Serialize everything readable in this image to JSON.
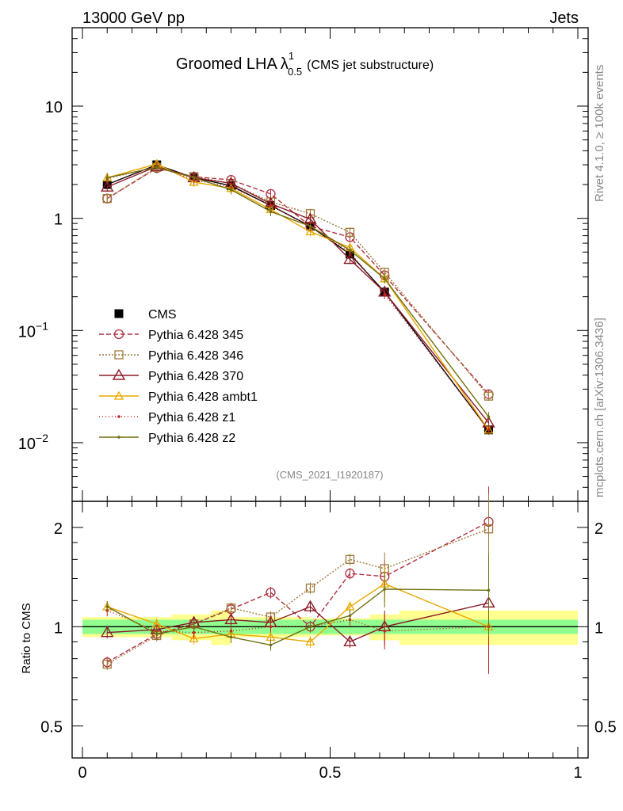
{
  "header": {
    "energy": "13000 GeV pp",
    "category": "Jets"
  },
  "title": {
    "main": "Groomed LHA",
    "lambda": "λ",
    "sup": "1",
    "sub": "0.5",
    "suffix": "(CMS jet substructure)"
  },
  "side_labels": {
    "rivet": "Rivet 4.1.0, ≥ 100k events",
    "mcplots": "mcplots.cern.ch [arXiv:1306.3436]"
  },
  "analysis_id": "(CMS_2021_I1920187)",
  "colors": {
    "cms": "#000000",
    "p345": "#b03040",
    "p346": "#a07838",
    "p370": "#8c1a28",
    "ambt1": "#e8a800",
    "z1": "#c82020",
    "z2": "#707010",
    "band_green": "#90ff90",
    "band_yellow": "#ffff90"
  },
  "chart_data": [
    {
      "type": "line",
      "name": "main",
      "yscale": "log",
      "xlim": [
        0,
        1
      ],
      "ylim": [
        0.003,
        50
      ],
      "yticks": [
        {
          "label": "10",
          "value": 10
        },
        {
          "label": "1",
          "value": 1
        },
        {
          "label": "10",
          "sup": "−1",
          "value": 0.1
        },
        {
          "label": "10",
          "sup": "−2",
          "value": 0.01
        }
      ],
      "x": [
        0.05,
        0.15,
        0.225,
        0.3,
        0.38,
        0.46,
        0.54,
        0.61,
        0.82
      ],
      "series": [
        {
          "key": "cms",
          "name": "CMS",
          "marker": "square-filled",
          "dash": "",
          "values": [
            2.0,
            3.0,
            2.3,
            1.95,
            1.3,
            0.85,
            0.48,
            0.22,
            0.013
          ]
        },
        {
          "key": "p345",
          "name": "Pythia 6.428 345",
          "marker": "circle-open",
          "dash": "6,3",
          "values": [
            1.5,
            2.8,
            2.35,
            2.2,
            1.65,
            0.85,
            0.68,
            0.31,
            0.027
          ]
        },
        {
          "key": "p346",
          "name": "Pythia 6.428 346",
          "marker": "square-open",
          "dash": "2,2",
          "values": [
            1.5,
            2.85,
            2.35,
            2.05,
            1.4,
            1.1,
            0.75,
            0.33,
            0.026
          ]
        },
        {
          "key": "p370",
          "name": "Pythia 6.428 370",
          "marker": "triangle-open",
          "dash": "",
          "values": [
            1.9,
            2.9,
            2.3,
            2.05,
            1.35,
            0.98,
            0.43,
            0.22,
            0.015
          ]
        },
        {
          "key": "ambt1",
          "name": "Pythia 6.428 ambt1",
          "marker": "triangle-open-small",
          "dash": "",
          "values": [
            2.3,
            3.05,
            2.1,
            1.85,
            1.2,
            0.76,
            0.55,
            0.29,
            0.013
          ]
        },
        {
          "key": "z1",
          "name": "Pythia 6.428 z1",
          "marker": "dot",
          "dash": "1,3",
          "values": [
            2.25,
            2.9,
            2.2,
            1.9,
            1.3,
            0.85,
            0.5,
            0.21,
            0.013
          ]
        },
        {
          "key": "z2",
          "name": "Pythia 6.428 z2",
          "marker": "dot",
          "dash": "",
          "values": [
            2.3,
            2.85,
            2.3,
            1.8,
            1.15,
            0.85,
            0.52,
            0.29,
            0.017
          ]
        }
      ]
    },
    {
      "type": "line",
      "name": "ratio",
      "ylabel": "Ratio to CMS",
      "yscale": "log",
      "xlim": [
        0,
        1
      ],
      "ylim": [
        0.4,
        2.4
      ],
      "xticks": [
        {
          "label": "0",
          "value": 0
        },
        {
          "label": "0.5",
          "value": 0.5
        },
        {
          "label": "1",
          "value": 1
        }
      ],
      "yticks": [
        {
          "label": "2",
          "value": 2
        },
        {
          "label": "1",
          "value": 1
        },
        {
          "label": "0.5",
          "value": 0.5
        }
      ],
      "bands": {
        "edges": [
          0,
          0.18,
          0.26,
          0.3,
          0.46,
          0.58,
          0.64,
          1.0
        ],
        "green": [
          0.05,
          0.05,
          0.05,
          0.05,
          0.05,
          0.05,
          0.05
        ],
        "yellow": [
          0.07,
          0.09,
          0.12,
          0.07,
          0.06,
          0.09,
          0.12
        ]
      },
      "x": [
        0.05,
        0.15,
        0.225,
        0.3,
        0.38,
        0.46,
        0.54,
        0.61,
        0.82
      ],
      "series": [
        {
          "key": "p345",
          "name": "Pythia 6.428 345",
          "marker": "circle-open",
          "dash": "6,3",
          "values": [
            0.78,
            0.95,
            1.02,
            1.13,
            1.27,
            1.0,
            1.45,
            1.42,
            2.08
          ]
        },
        {
          "key": "p346",
          "name": "Pythia 6.428 346",
          "marker": "square-open",
          "dash": "2,2",
          "values": [
            0.77,
            0.94,
            1.02,
            1.14,
            1.07,
            1.31,
            1.6,
            1.5,
            1.98
          ]
        },
        {
          "key": "p370",
          "name": "Pythia 6.428 370",
          "marker": "triangle-open",
          "dash": "",
          "values": [
            0.96,
            0.98,
            1.03,
            1.05,
            1.03,
            1.15,
            0.9,
            1.0,
            1.18
          ]
        },
        {
          "key": "ambt1",
          "name": "Pythia 6.428 ambt1",
          "marker": "triangle-open-small",
          "dash": "",
          "values": [
            1.15,
            1.02,
            0.92,
            0.95,
            0.93,
            0.9,
            1.15,
            1.35,
            1.0
          ]
        },
        {
          "key": "z1",
          "name": "Pythia 6.428 z1",
          "marker": "dot",
          "dash": "1,3",
          "values": [
            1.12,
            0.97,
            0.96,
            0.97,
            1.0,
            1.0,
            1.05,
            0.97,
            1.0
          ]
        },
        {
          "key": "z2",
          "name": "Pythia 6.428 z2",
          "marker": "dot",
          "dash": "",
          "values": [
            1.15,
            0.95,
            1.0,
            0.93,
            0.88,
            1.0,
            1.08,
            1.3,
            1.29
          ]
        }
      ]
    }
  ]
}
